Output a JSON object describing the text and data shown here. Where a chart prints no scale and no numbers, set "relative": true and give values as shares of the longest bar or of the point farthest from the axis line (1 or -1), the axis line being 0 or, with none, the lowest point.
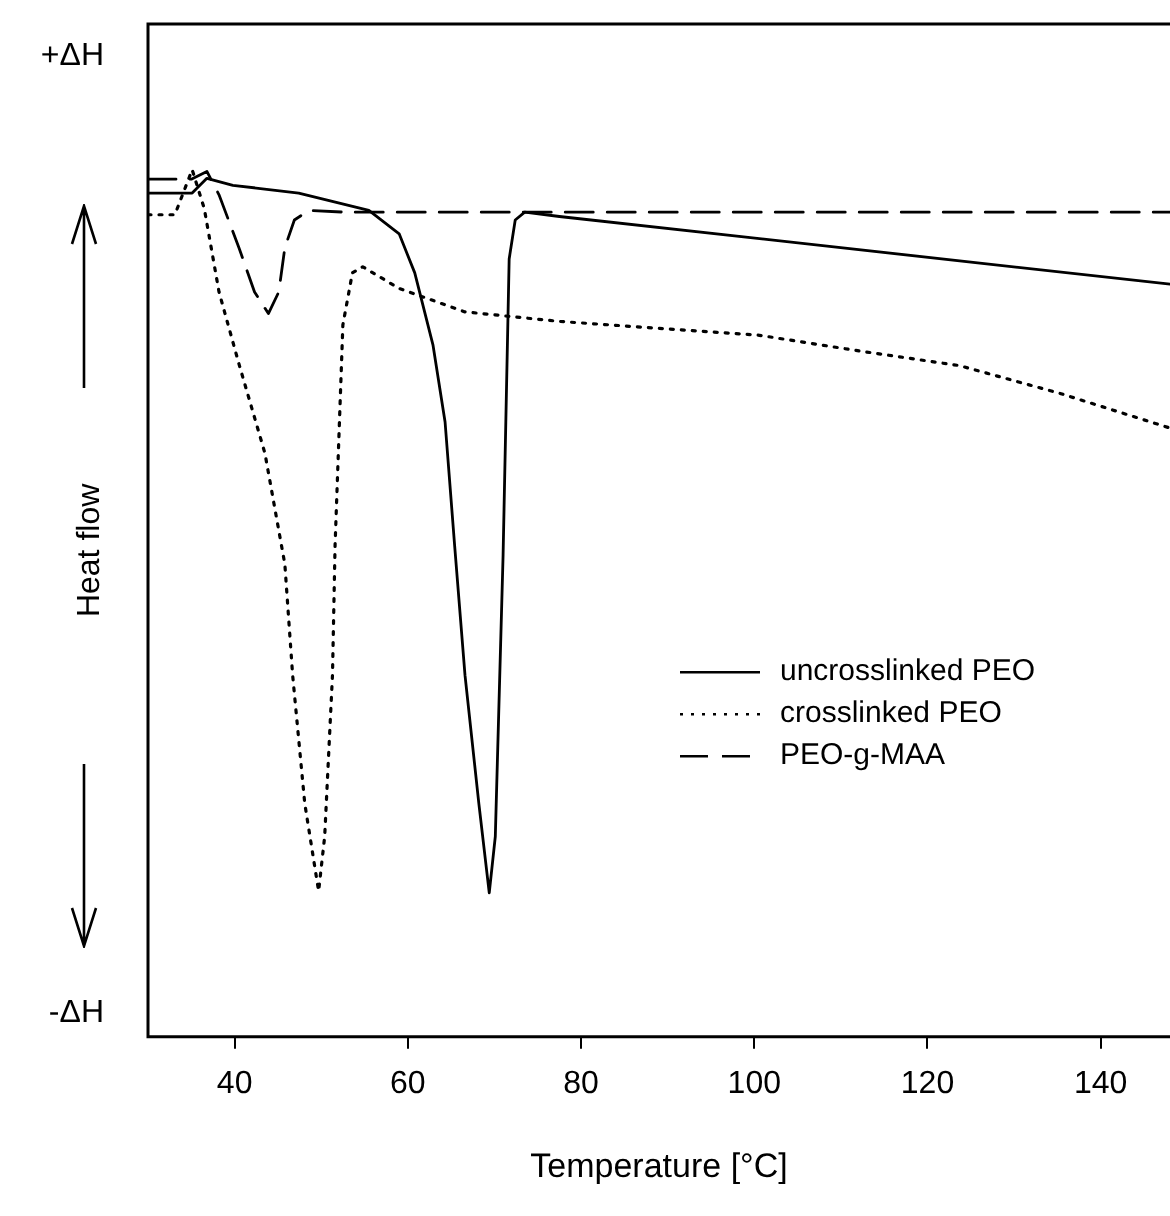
{
  "chart_data": {
    "type": "line",
    "relative": true,
    "xlabel": "Temperature [°C]",
    "ylabel": "Heat flow",
    "annotations": [
      "+ΔH",
      "-ΔH"
    ],
    "xlim": [
      30,
      148
    ],
    "xticks": [
      40,
      60,
      80,
      100,
      120,
      140
    ],
    "legend": "right",
    "grid": false,
    "marker": "none",
    "series": [
      {
        "name": "uncrosslinked PEO",
        "color": "#000000",
        "line_style": "solid",
        "x": [
          30,
          35.1,
          36.8,
          39.8,
          47.4,
          55.5,
          59.0,
          60.8,
          62.9,
          64.3,
          65.4,
          66.6,
          68.2,
          69.4,
          70.1,
          71.0,
          71.7,
          72.4,
          73.5,
          77.5,
          148
        ],
        "values": [
          0.973,
          0.973,
          0.99,
          0.982,
          0.973,
          0.953,
          0.926,
          0.881,
          0.798,
          0.709,
          0.567,
          0.417,
          0.269,
          0.166,
          0.231,
          0.556,
          0.897,
          0.942,
          0.951,
          0.946,
          0.868
        ]
      },
      {
        "name": "crosslinked PEO",
        "color": "#000000",
        "line_style": "dotted",
        "x": [
          30,
          33.1,
          35.1,
          36.5,
          38.2,
          40.5,
          43.5,
          45.8,
          46.7,
          48.1,
          49.7,
          50.4,
          51.3,
          51.6,
          52.5,
          53.6,
          54.8,
          59.0,
          66.6,
          77.5,
          100.6,
          112.1,
          123.7,
          135.3,
          148
        ],
        "values": [
          0.948,
          0.948,
          1.0,
          0.955,
          0.859,
          0.776,
          0.673,
          0.545,
          0.417,
          0.269,
          0.168,
          0.231,
          0.417,
          0.567,
          0.821,
          0.881,
          0.888,
          0.863,
          0.836,
          0.825,
          0.809,
          0.791,
          0.774,
          0.742,
          0.702
        ]
      },
      {
        "name": "PEO-g-MAA",
        "color": "#000000",
        "line_style": "dashed",
        "x": [
          30,
          35.0,
          36.8,
          38.2,
          40.5,
          42.3,
          43.9,
          45.1,
          45.8,
          46.9,
          48.6,
          52.7,
          148
        ],
        "values": [
          0.989,
          0.989,
          0.998,
          0.971,
          0.91,
          0.859,
          0.834,
          0.859,
          0.91,
          0.942,
          0.953,
          0.951,
          0.951
        ]
      }
    ]
  }
}
